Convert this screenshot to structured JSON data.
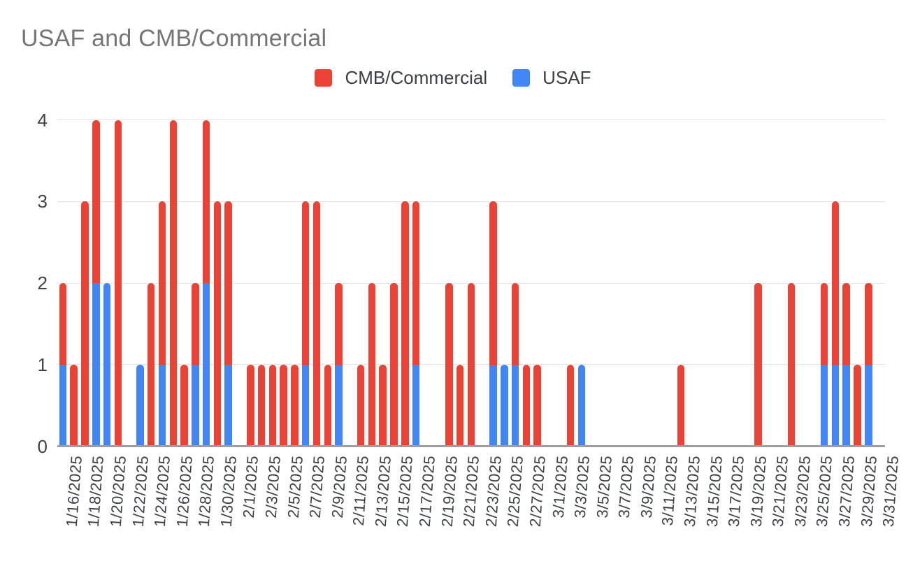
{
  "title": "USAF and CMB/Commercial",
  "legend": {
    "items": [
      {
        "label": "CMB/Commercial",
        "color": "#EA4335",
        "series_key": "cmb"
      },
      {
        "label": "USAF",
        "color": "#4285F4",
        "series_key": "usaf"
      }
    ]
  },
  "colors": {
    "cmb_red": "#EA4335",
    "usaf_blue": "#4285F4",
    "title_gray": "#757575",
    "axis_text": "#3c4043",
    "gridline": "#e3e3e3",
    "axis_line": "#9e9e9e",
    "background": "#ffffff"
  },
  "chart_data": {
    "type": "bar",
    "stacked": true,
    "title": "USAF and CMB/Commercial",
    "xlabel": "",
    "ylabel": "",
    "ylim": [
      0,
      4
    ],
    "yticks": [
      0,
      1,
      2,
      3,
      4
    ],
    "grid": true,
    "legend_position": "top-center",
    "bar_cap": "rounded-top",
    "x_tick_label_every": 2,
    "x_tick_rotation_deg": -86,
    "categories": [
      "1/16/2025",
      "1/17/2025",
      "1/18/2025",
      "1/19/2025",
      "1/20/2025",
      "1/21/2025",
      "1/22/2025",
      "1/23/2025",
      "1/24/2025",
      "1/25/2025",
      "1/26/2025",
      "1/27/2025",
      "1/28/2025",
      "1/29/2025",
      "1/30/2025",
      "1/31/2025",
      "2/1/2025",
      "2/2/2025",
      "2/3/2025",
      "2/4/2025",
      "2/5/2025",
      "2/6/2025",
      "2/7/2025",
      "2/8/2025",
      "2/9/2025",
      "2/10/2025",
      "2/11/2025",
      "2/12/2025",
      "2/13/2025",
      "2/14/2025",
      "2/15/2025",
      "2/16/2025",
      "2/17/2025",
      "2/18/2025",
      "2/19/2025",
      "2/20/2025",
      "2/21/2025",
      "2/22/2025",
      "2/23/2025",
      "2/24/2025",
      "2/25/2025",
      "2/26/2025",
      "2/27/2025",
      "2/28/2025",
      "3/1/2025",
      "3/2/2025",
      "3/3/2025",
      "3/4/2025",
      "3/5/2025",
      "3/6/2025",
      "3/7/2025",
      "3/8/2025",
      "3/9/2025",
      "3/10/2025",
      "3/11/2025",
      "3/12/2025",
      "3/13/2025",
      "3/14/2025",
      "3/15/2025",
      "3/16/2025",
      "3/17/2025",
      "3/18/2025",
      "3/19/2025",
      "3/20/2025",
      "3/21/2025",
      "3/22/2025",
      "3/23/2025",
      "3/24/2025",
      "3/25/2025",
      "3/26/2025",
      "3/27/2025",
      "3/28/2025",
      "3/29/2025",
      "3/30/2025",
      "3/31/2025"
    ],
    "series": [
      {
        "name": "USAF",
        "color": "#4285F4",
        "stack_order": "bottom",
        "values": [
          1,
          0,
          0,
          2,
          2,
          0,
          0,
          1,
          0,
          1,
          0,
          0,
          1,
          2,
          0,
          1,
          0,
          0,
          0,
          0,
          0,
          0,
          1,
          0,
          0,
          1,
          0,
          0,
          0,
          0,
          0,
          0,
          1,
          0,
          0,
          0,
          0,
          0,
          0,
          1,
          1,
          1,
          0,
          0,
          0,
          0,
          0,
          1,
          0,
          0,
          0,
          0,
          0,
          0,
          0,
          0,
          0,
          0,
          0,
          0,
          0,
          0,
          0,
          0,
          0,
          0,
          0,
          0,
          0,
          1,
          1,
          1,
          0,
          1,
          0
        ]
      },
      {
        "name": "CMB/Commercial",
        "color": "#EA4335",
        "stack_order": "top",
        "values": [
          1,
          1,
          3,
          2,
          0,
          4,
          0,
          0,
          2,
          2,
          4,
          1,
          1,
          2,
          3,
          2,
          0,
          1,
          1,
          1,
          1,
          1,
          2,
          3,
          1,
          1,
          0,
          1,
          2,
          1,
          2,
          3,
          2,
          0,
          0,
          2,
          1,
          2,
          0,
          2,
          0,
          1,
          1,
          1,
          0,
          0,
          1,
          0,
          0,
          0,
          0,
          0,
          0,
          0,
          0,
          0,
          1,
          0,
          0,
          0,
          0,
          0,
          0,
          2,
          0,
          0,
          2,
          0,
          0,
          1,
          2,
          1,
          1,
          1,
          0
        ]
      }
    ]
  }
}
